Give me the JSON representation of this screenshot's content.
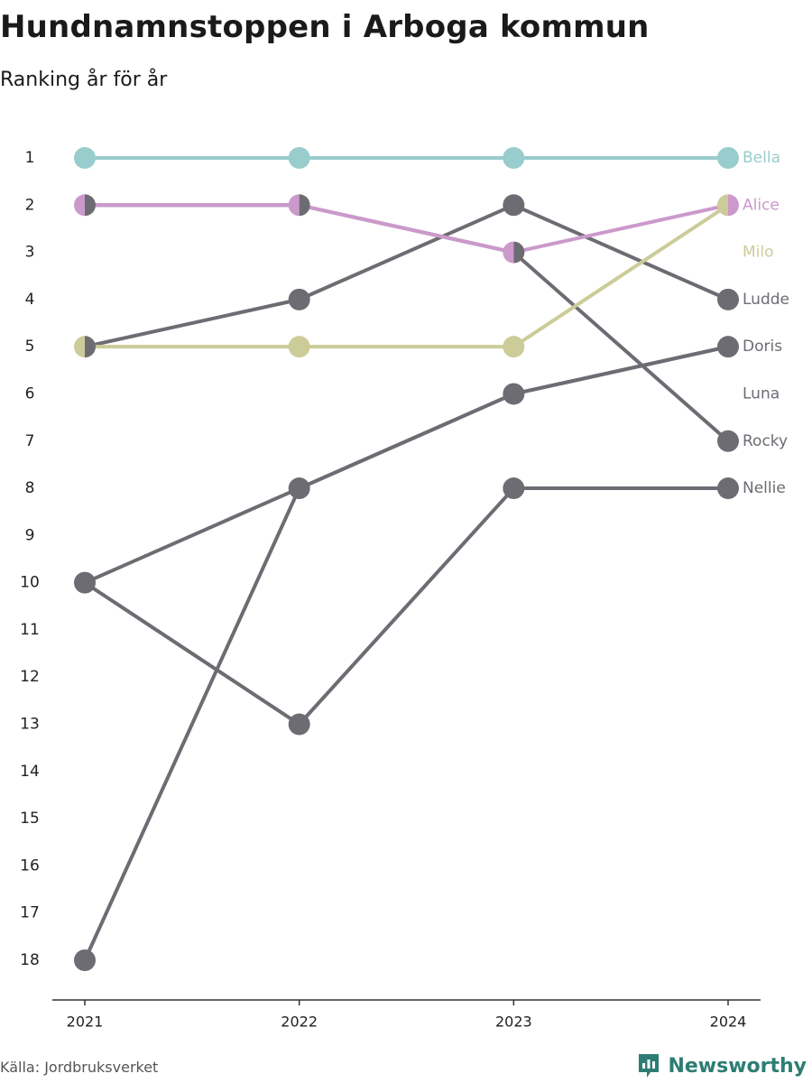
{
  "header": {
    "title": "Hundnamnstoppen i Arboga kommun",
    "subtitle": "Ranking år för år"
  },
  "footer": {
    "source": "Källa: Jordbruksverket",
    "brand": "Newsworthy"
  },
  "colors": {
    "default": "#6d6c73",
    "Bella": "#99cccc",
    "Alice": "#cc99cc",
    "Milo": "#cccc99",
    "axis": "#333333",
    "brand": "#2e7d74"
  },
  "chart_data": {
    "type": "line",
    "subtype": "bump",
    "x": [
      "2021",
      "2022",
      "2023",
      "2024"
    ],
    "yticks": [
      1,
      2,
      3,
      4,
      5,
      6,
      7,
      8,
      9,
      10,
      11,
      12,
      13,
      14,
      15,
      16,
      17,
      18
    ],
    "ylim": [
      1,
      18
    ],
    "y_reversed": true,
    "grid": false,
    "series": [
      {
        "name": "Nellie",
        "values": [
          10,
          13,
          8,
          8
        ]
      },
      {
        "name": "Rocky",
        "values": [
          2,
          2,
          3,
          7
        ]
      },
      {
        "name": "Luna",
        "values": [
          18,
          8,
          6,
          5
        ]
      },
      {
        "name": "Doris",
        "values": [
          10,
          8,
          6,
          5
        ]
      },
      {
        "name": "Ludde",
        "values": [
          5,
          4,
          2,
          4
        ]
      },
      {
        "name": "Milo",
        "values": [
          5,
          5,
          5,
          2
        ]
      },
      {
        "name": "Alice",
        "values": [
          2,
          2,
          3,
          2
        ]
      },
      {
        "name": "Bella",
        "values": [
          1,
          1,
          1,
          1
        ]
      }
    ],
    "end_labels": [
      {
        "name": "Bella",
        "rank": 1
      },
      {
        "name": "Alice",
        "rank": 2
      },
      {
        "name": "Milo",
        "rank": 3
      },
      {
        "name": "Ludde",
        "rank": 4
      },
      {
        "name": "Doris",
        "rank": 5
      },
      {
        "name": "Luna",
        "rank": 6
      },
      {
        "name": "Rocky",
        "rank": 7
      },
      {
        "name": "Nellie",
        "rank": 8
      }
    ]
  }
}
